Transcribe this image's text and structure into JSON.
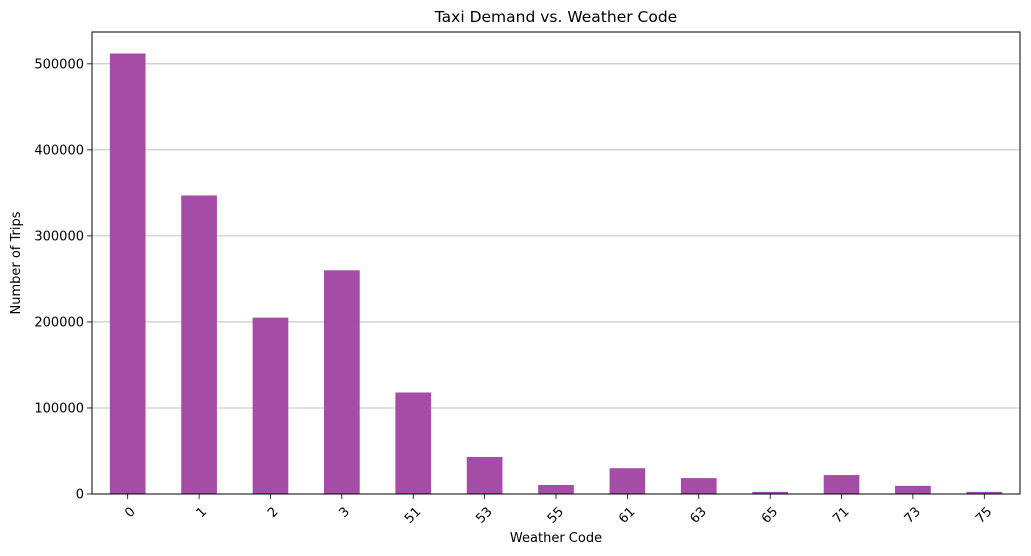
{
  "chart_data": {
    "type": "bar",
    "title": "Taxi Demand vs. Weather Code",
    "xlabel": "Weather Code",
    "ylabel": "Number of Trips",
    "categories": [
      "0",
      "1",
      "2",
      "3",
      "51",
      "53",
      "55",
      "61",
      "63",
      "65",
      "71",
      "73",
      "75"
    ],
    "values": [
      512000,
      347000,
      205000,
      260000,
      118000,
      43000,
      10500,
      30000,
      18500,
      2500,
      22000,
      9500,
      2500
    ],
    "ylim": [
      0,
      537000
    ],
    "yticks": [
      0,
      100000,
      200000,
      300000,
      400000,
      500000
    ],
    "ytick_labels": [
      "0",
      "100000",
      "200000",
      "300000",
      "400000",
      "500000"
    ],
    "grid": "y",
    "bar_color": "#a44ca6",
    "xtick_rotation": 45
  }
}
